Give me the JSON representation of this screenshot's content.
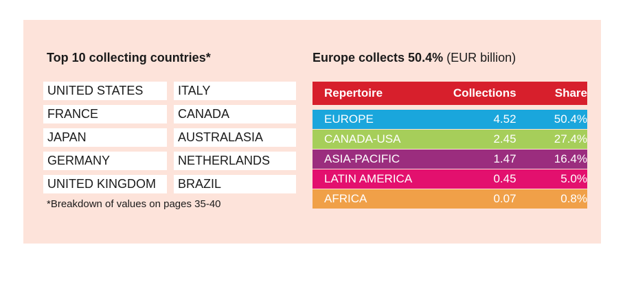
{
  "left": {
    "title": "Top 10 collecting countries*",
    "countries": [
      "UNITED STATES",
      "ITALY",
      "FRANCE",
      "CANADA",
      "JAPAN",
      "AUSTRALASIA",
      "GERMANY",
      "NETHERLANDS",
      "UNITED KINGDOM",
      "BRAZIL"
    ],
    "footnote": "*Breakdown of values on pages 35-40"
  },
  "right": {
    "title_bold": "Europe collects 50.4%",
    "title_rest": " (EUR billion)",
    "headers": {
      "repertoire": "Repertoire",
      "collections": "Collections",
      "share": "Share"
    },
    "rows": [
      {
        "repertoire": "EUROPE",
        "collections": "4.52",
        "share": "50.4%",
        "color": "#1aa6dc"
      },
      {
        "repertoire": "CANADA-USA",
        "collections": "2.45",
        "share": "27.4%",
        "color": "#a6ce5a"
      },
      {
        "repertoire": "ASIA-PACIFIC",
        "collections": "1.47",
        "share": "16.4%",
        "color": "#9b2d7e"
      },
      {
        "repertoire": "LATIN AMERICA",
        "collections": "0.45",
        "share": "5.0%",
        "color": "#e3106e"
      },
      {
        "repertoire": "AFRICA",
        "collections": "0.07",
        "share": "0.8%",
        "color": "#f0a048"
      }
    ]
  },
  "colors": {
    "panel_background": "#fde3da",
    "header_background": "#d71f2c"
  }
}
